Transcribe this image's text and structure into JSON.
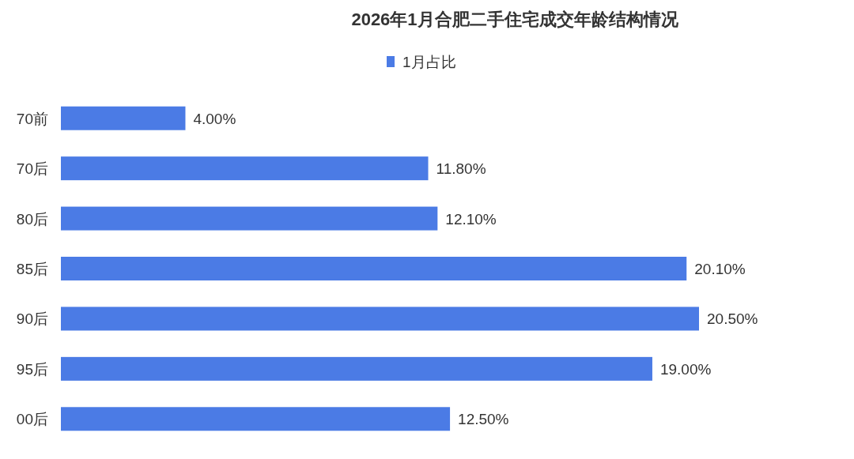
{
  "chart_data": {
    "type": "bar",
    "orientation": "horizontal",
    "title": "2026年1月合肥二手住宅成交年龄结构情况",
    "categories": [
      "70前",
      "70后",
      "80后",
      "85后",
      "90后",
      "95后",
      "00后"
    ],
    "series": [
      {
        "name": "1月占比",
        "color": "#4b7be5",
        "values": [
          4.0,
          11.8,
          12.1,
          20.1,
          20.5,
          19.0,
          12.5
        ],
        "value_labels": [
          "4.00%",
          "11.80%",
          "12.10%",
          "20.10%",
          "20.50%",
          "19.00%",
          "12.50%"
        ]
      }
    ],
    "legend": "top",
    "tick_labels": "y"
  }
}
